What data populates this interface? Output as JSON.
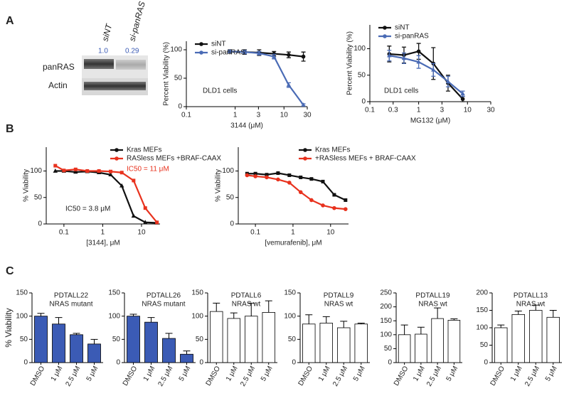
{
  "panel_labels": [
    "A",
    "B",
    "C"
  ],
  "blot": {
    "lanes": [
      "siNT",
      "si-panRAS"
    ],
    "quant": [
      "1.0",
      "0.29"
    ],
    "rows": [
      "panRAS",
      "Actin"
    ]
  },
  "chart_data": [
    {
      "type": "line",
      "xlabel": "3144 (μM)",
      "ylabel": "Percent Viability (%)",
      "xlog": true,
      "xlim": [
        0.1,
        30
      ],
      "xticks": [
        0.1,
        1,
        3,
        10,
        30
      ],
      "ylim": [
        0,
        115
      ],
      "yticks": [
        0,
        50,
        100
      ],
      "legend": "upper left",
      "annotations": [
        "DLD1 cells"
      ],
      "x": [
        0.78,
        1.56,
        3.1,
        6.25,
        12.5,
        25
      ],
      "series": [
        {
          "name": "siNT",
          "color": "#111111",
          "marker": "circle",
          "values": [
            97,
            96,
            95,
            93,
            91,
            88
          ],
          "errors": [
            3,
            4,
            5,
            4,
            5,
            8
          ]
        },
        {
          "name": "si-panRAS",
          "color": "#4a6bb5",
          "marker": "triangle",
          "values": [
            97,
            96,
            94,
            88,
            38,
            3
          ],
          "errors": [
            2,
            3,
            3,
            4,
            4,
            2
          ]
        }
      ]
    },
    {
      "type": "line",
      "xlabel": "MG132 (μM)",
      "ylabel": "Percent Viability (%)",
      "xlog": true,
      "xlim": [
        0.1,
        30
      ],
      "xticks": [
        0.1,
        0.3,
        1,
        3,
        10,
        30
      ],
      "ylim": [
        0,
        145
      ],
      "yticks": [
        0,
        50,
        100
      ],
      "legend": "upper left",
      "annotations": [
        "DLD1 cells"
      ],
      "x": [
        0.25,
        0.5,
        1,
        2,
        4,
        8
      ],
      "series": [
        {
          "name": "siNT",
          "color": "#111111",
          "marker": "circle",
          "values": [
            90,
            88,
            95,
            72,
            35,
            5
          ],
          "errors": [
            15,
            15,
            15,
            30,
            15,
            5
          ]
        },
        {
          "name": "si-panRAS",
          "color": "#4a6bb5",
          "marker": "triangle",
          "values": [
            87,
            82,
            75,
            60,
            38,
            15
          ],
          "errors": [
            10,
            10,
            12,
            12,
            10,
            5
          ]
        }
      ]
    },
    {
      "type": "line",
      "xlabel": "[3144], μM",
      "ylabel": "% Viability",
      "xlog": true,
      "xlim": [
        0.035,
        30
      ],
      "xticks": [
        0.1,
        1,
        10
      ],
      "ylim": [
        0,
        145
      ],
      "yticks": [
        0,
        50,
        100
      ],
      "legend": "upper right",
      "annotations": [
        "IC50 = 3.8 μM",
        "IC50 = 11 μM"
      ],
      "x": [
        0.06,
        0.1,
        0.2,
        0.4,
        0.8,
        1.6,
        3.1,
        6.25,
        12.5,
        25
      ],
      "series": [
        {
          "name": "Kras MEFs",
          "color": "#111111",
          "marker": "triangle",
          "values": [
            100,
            100,
            98,
            99,
            97,
            93,
            72,
            15,
            3,
            2
          ]
        },
        {
          "name": "RASless MEFs +BRAF-CAAX",
          "color": "#e8321e",
          "marker": "square",
          "values": [
            110,
            101,
            103,
            100,
            100,
            99,
            97,
            82,
            30,
            3
          ]
        }
      ]
    },
    {
      "type": "line",
      "xlabel": "[vemurafenib], μM",
      "ylabel": "% Viability",
      "xlog": true,
      "xlim": [
        0.035,
        30
      ],
      "xticks": [
        0.1,
        1,
        10
      ],
      "ylim": [
        0,
        145
      ],
      "yticks": [
        0,
        50,
        100
      ],
      "legend": "upper right",
      "annotations": [],
      "x": [
        0.06,
        0.1,
        0.2,
        0.4,
        0.8,
        1.6,
        3.1,
        6.25,
        12.5,
        25
      ],
      "series": [
        {
          "name": "Kras MEFs",
          "color": "#111111",
          "marker": "square",
          "values": [
            95,
            95,
            93,
            96,
            92,
            88,
            85,
            80,
            55,
            45
          ]
        },
        {
          "name": "+RASless MEFs + BRAF-CAAX",
          "color": "#e8321e",
          "marker": "circle",
          "values": [
            92,
            90,
            88,
            84,
            78,
            60,
            45,
            35,
            30,
            28
          ]
        }
      ]
    },
    {
      "type": "bar",
      "title": "PDTALL22",
      "subtitle": "NRAS mutant",
      "ylabel": "% Viability",
      "color": "#3b5bb5",
      "categories": [
        "DMSO",
        "1 μM",
        "2.5 μM",
        "5 μM"
      ],
      "values": [
        100,
        83,
        60,
        40
      ],
      "errors": [
        6,
        14,
        3,
        10
      ],
      "ylim": [
        0,
        150
      ],
      "yticks": [
        0,
        50,
        100,
        150
      ]
    },
    {
      "type": "bar",
      "title": "PDTALL26",
      "subtitle": "NRAS mutant",
      "color": "#3b5bb5",
      "categories": [
        "DMSO",
        "1 μM",
        "2.5 μM",
        "5 μM"
      ],
      "values": [
        100,
        87,
        52,
        18
      ],
      "errors": [
        4,
        10,
        11,
        7
      ],
      "ylim": [
        0,
        150
      ],
      "yticks": [
        0,
        50,
        100,
        150
      ]
    },
    {
      "type": "bar",
      "title": "PDTALL6",
      "subtitle": "NRAS wt",
      "color": "#ffffff",
      "categories": [
        "DMSO",
        "1 μM",
        "2.5 μM",
        "5 μM"
      ],
      "values": [
        110,
        95,
        100,
        108
      ],
      "errors": [
        18,
        12,
        28,
        25
      ],
      "ylim": [
        0,
        150
      ],
      "yticks": [
        0,
        50,
        100,
        150
      ]
    },
    {
      "type": "bar",
      "title": "PDTALL9",
      "subtitle": "NRAS wt",
      "color": "#ffffff",
      "categories": [
        "DMSO",
        "1 μM",
        "2.5 μM",
        "5 μM"
      ],
      "values": [
        83,
        85,
        75,
        83
      ],
      "errors": [
        20,
        14,
        14,
        2
      ],
      "ylim": [
        0,
        150
      ],
      "yticks": [
        0,
        50,
        100,
        150
      ]
    },
    {
      "type": "bar",
      "title": "PDTALL19",
      "subtitle": "NRAS wt",
      "color": "#ffffff",
      "categories": [
        "DMSO",
        "1 μM",
        "2.5 μM",
        "5 μM"
      ],
      "values": [
        100,
        102,
        158,
        152
      ],
      "errors": [
        35,
        25,
        38,
        5
      ],
      "ylim": [
        0,
        250
      ],
      "yticks": [
        0,
        50,
        100,
        150,
        200,
        250
      ]
    },
    {
      "type": "bar",
      "title": "PDTALL13",
      "subtitle": "NRAS wt",
      "color": "#ffffff",
      "categories": [
        "DMSO",
        "1 μM",
        "2.5 μM",
        "5 μM"
      ],
      "values": [
        100,
        138,
        150,
        130
      ],
      "errors": [
        8,
        10,
        15,
        20
      ],
      "ylim": [
        0,
        200
      ],
      "yticks": [
        0,
        50,
        100,
        150,
        200
      ]
    }
  ]
}
